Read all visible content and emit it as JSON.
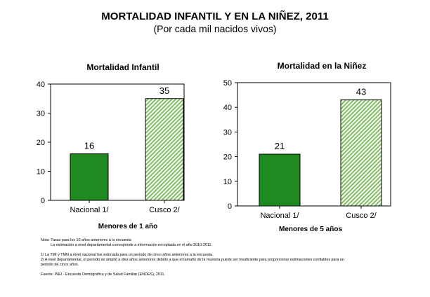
{
  "header": {
    "title": "MORTALIDAD INFANTIL Y EN LA NIÑEZ, 2011",
    "subtitle": "(Por cada mil nacidos vivos)"
  },
  "colors": {
    "national_bar": "#1f8a1f",
    "cusco_bar_stripe": "#7fbf5f",
    "axis": "#000000"
  },
  "chart_data": [
    {
      "type": "bar",
      "title": "Mortalidad Infantil",
      "xlabel": "Menores de 1 año",
      "ylabel": "",
      "categories": [
        "Nacional 1/",
        "Cusco 2/"
      ],
      "values": [
        16,
        35
      ],
      "data_labels": [
        "16",
        "35"
      ],
      "ylim": [
        0,
        40
      ],
      "yticks": [
        "0",
        "10",
        "20",
        "30",
        "40"
      ],
      "grid": false,
      "legend": "none"
    },
    {
      "type": "bar",
      "title": "Mortalidad en la Niñez",
      "xlabel": "Menores de 5 años",
      "ylabel": "",
      "categories": [
        "Nacional 1/",
        "Cusco 2/"
      ],
      "values": [
        21,
        43
      ],
      "data_labels": [
        "21",
        "43"
      ],
      "ylim": [
        0,
        50
      ],
      "yticks": [
        "0",
        "10",
        "20",
        "30",
        "40",
        "50"
      ],
      "grid": false,
      "legend": "none"
    }
  ],
  "notes": {
    "line1": "Nota: Tasas para los 10 años anteriores a la encuesta",
    "line2": "La estimación a nivel departamental corresponde a información recopilada en el año 2010-2011.",
    "line3": "1/ La TMI y TMN a nivel nacional fue estimada para un periodo de cinco años anteriores a la encuesta.",
    "line4": "2/ A nivel departamental, el periodo se amplió a diez años anteriores debido a que el tamaño de la muestra puede ser insuficiente para proporcionar estimaciones confiables para un",
    "line5": "periodo de cinco años.",
    "line6": "Fuente: INEI - Encuesta Demográfica y de Salud Familiar (ENDES), 2011."
  }
}
